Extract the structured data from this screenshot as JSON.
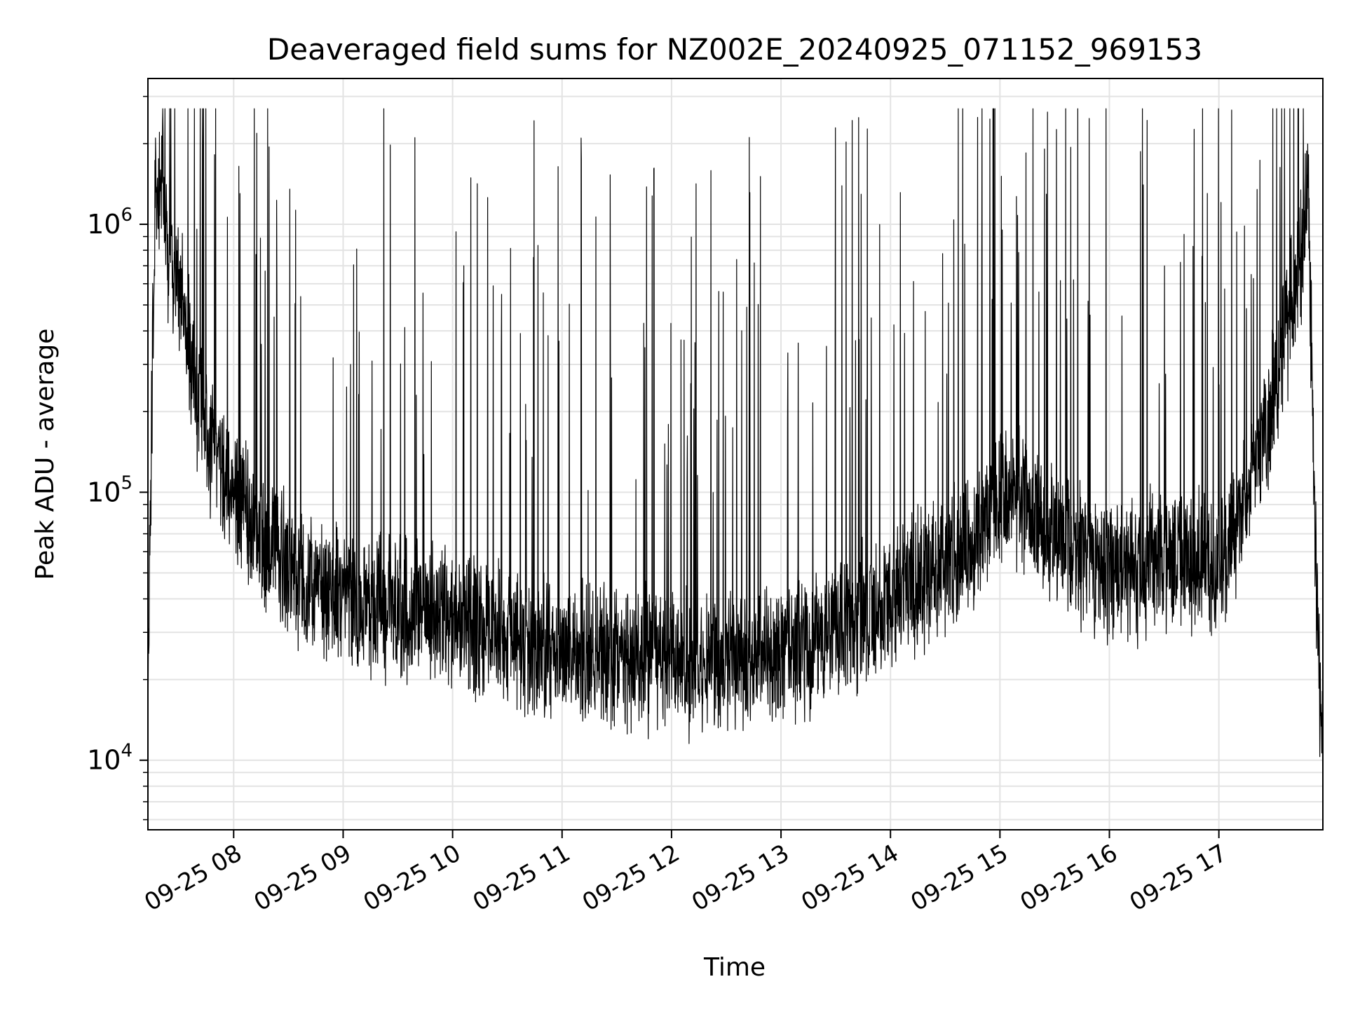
{
  "chart_data": {
    "type": "line",
    "title": "Deaveraged field sums for NZ002E_20240925_071152_969153",
    "xlabel": "Time",
    "ylabel": "Peak ADU - average",
    "yscale": "log",
    "ylim": [
      5500,
      3500000
    ],
    "xlim": [
      "2024-09-25T07:13",
      "2024-09-25T17:57"
    ],
    "grid": true,
    "legend": "none",
    "colors": {
      "line": "#000000",
      "grid": "#e3e3e3",
      "background": "#ffffff"
    },
    "x_ticks": [
      {
        "value": "2024-09-25T08:00",
        "label": "09-25 08"
      },
      {
        "value": "2024-09-25T09:00",
        "label": "09-25 09"
      },
      {
        "value": "2024-09-25T10:00",
        "label": "09-25 10"
      },
      {
        "value": "2024-09-25T11:00",
        "label": "09-25 11"
      },
      {
        "value": "2024-09-25T12:00",
        "label": "09-25 12"
      },
      {
        "value": "2024-09-25T13:00",
        "label": "09-25 13"
      },
      {
        "value": "2024-09-25T14:00",
        "label": "09-25 14"
      },
      {
        "value": "2024-09-25T15:00",
        "label": "09-25 15"
      },
      {
        "value": "2024-09-25T16:00",
        "label": "09-25 16"
      },
      {
        "value": "2024-09-25T17:00",
        "label": "09-25 17"
      }
    ],
    "y_ticks": [
      {
        "value": 10000,
        "base": "10",
        "exp": "4"
      },
      {
        "value": 100000,
        "base": "10",
        "exp": "5"
      },
      {
        "value": 1000000,
        "base": "10",
        "exp": "6"
      }
    ],
    "series": [
      {
        "baseline": {
          "x": [
            "2024-09-25T07:13",
            "2024-09-25T07:15",
            "2024-09-25T07:17",
            "2024-09-25T07:20",
            "2024-09-25T07:25",
            "2024-09-25T07:30",
            "2024-09-25T07:35",
            "2024-09-25T07:40",
            "2024-09-25T07:45",
            "2024-09-25T07:50",
            "2024-09-25T08:00",
            "2024-09-25T08:15",
            "2024-09-25T08:30",
            "2024-09-25T09:00",
            "2024-09-25T09:30",
            "2024-09-25T10:00",
            "2024-09-25T10:30",
            "2024-09-25T11:00",
            "2024-09-25T11:30",
            "2024-09-25T12:00",
            "2024-09-25T12:30",
            "2024-09-25T13:00",
            "2024-09-25T13:30",
            "2024-09-25T14:00",
            "2024-09-25T14:30",
            "2024-09-25T14:50",
            "2024-09-25T15:00",
            "2024-09-25T15:30",
            "2024-09-25T16:00",
            "2024-09-25T16:30",
            "2024-09-25T17:00",
            "2024-09-25T17:20",
            "2024-09-25T17:35",
            "2024-09-25T17:45",
            "2024-09-25T17:49",
            "2024-09-25T17:52",
            "2024-09-25T17:55",
            "2024-09-25T17:57"
          ],
          "y": [
            16000,
            200000,
            1200000,
            1500000,
            700000,
            620000,
            350000,
            230000,
            180000,
            130000,
            95000,
            70000,
            52000,
            40000,
            36000,
            33000,
            29000,
            26000,
            24000,
            23000,
            23000,
            25000,
            30000,
            40000,
            55000,
            70000,
            100000,
            70000,
            50000,
            55000,
            55000,
            110000,
            350000,
            750000,
            1400000,
            110000,
            22000,
            9000
          ]
        }
      }
    ]
  }
}
